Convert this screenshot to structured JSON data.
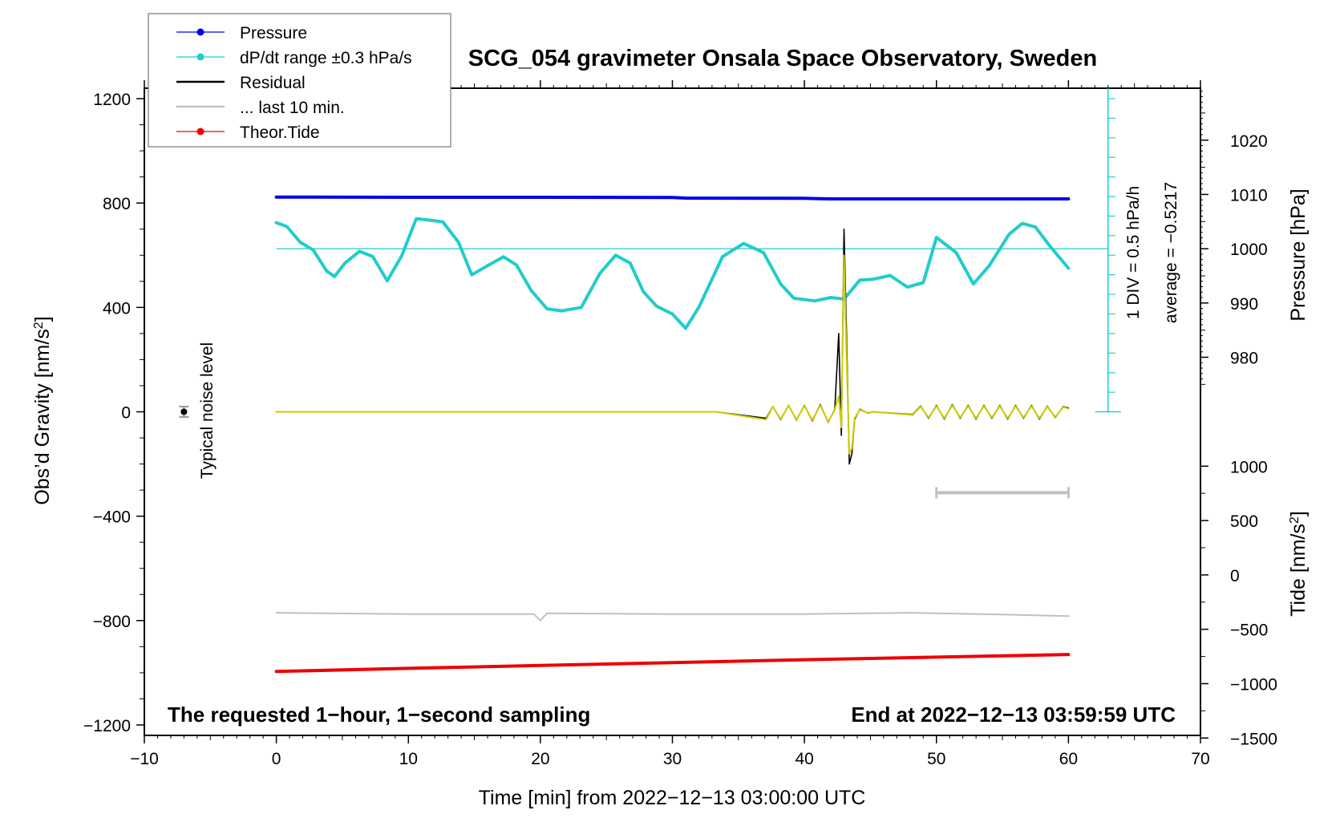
{
  "chart_data": {
    "type": "line",
    "title": "SCG_054 gravimeter Onsala Space Observatory, Sweden",
    "xlabel": "Time [min] from 2022−12−13 03:00:00 UTC",
    "ylabel_left": "Obs’d Gravity [nm/s",
    "ylabel_left_sup": "2",
    "ylabel_left_close": "]",
    "ylabel_right_pressure": "Pressure [hPa]",
    "ylabel_right_tide": "Tide [nm/s",
    "ylabel_right_tide_sup": "2",
    "ylabel_right_tide_close": "]",
    "xlim": [
      -10,
      70
    ],
    "ylim_left": [
      -1240,
      1240
    ],
    "x_ticks": [
      -10,
      0,
      10,
      20,
      30,
      40,
      50,
      60,
      70
    ],
    "x_tick_labels": [
      "−10",
      "0",
      "10",
      "20",
      "30",
      "40",
      "50",
      "60",
      "70"
    ],
    "y_left_ticks": [
      1200,
      800,
      400,
      0,
      -400,
      -800,
      -1200
    ],
    "y_left_tick_labels": [
      "1200",
      "800",
      "400",
      "0",
      "−400",
      "−800",
      "−1200"
    ],
    "pressure_axis": {
      "ticks": [
        1020,
        1010,
        1000,
        990,
        980
      ],
      "labels": [
        "1020",
        "1010",
        "1000",
        "990",
        "980"
      ],
      "g_at_1000": 625,
      "g_per_hpa": 20.8
    },
    "tide_axis": {
      "ticks": [
        1000,
        500,
        0,
        -500,
        -1000,
        -1500
      ],
      "labels": [
        "1000",
        "500",
        "0",
        "−500",
        "−1000",
        "−1500"
      ],
      "g_at_0": -625,
      "g_per_unit": 0.4167
    },
    "series": [
      {
        "name": "Pressure",
        "color": "#0000ee",
        "x": [
          0,
          10,
          20,
          30,
          31,
          40,
          42,
          50,
          60
        ],
        "y": [
          823,
          822,
          822,
          821,
          819,
          818,
          816,
          816,
          816
        ]
      },
      {
        "name": "dP/dt range ±0.3 hPa/s",
        "color": "#22cccc",
        "x": [
          0,
          0.8,
          1.8,
          2.8,
          3.8,
          4.4,
          5.2,
          6.3,
          7.3,
          8.4,
          9.5,
          10.6,
          11.5,
          12.6,
          13.8,
          14.8,
          16,
          17.2,
          18.2,
          19.3,
          20.5,
          21.6,
          23.1,
          24.5,
          25.7,
          26.8,
          27.8,
          28.8,
          30,
          31,
          32,
          33.8,
          35.4,
          36.9,
          38.2,
          39.2,
          40.8,
          42,
          43,
          44.2,
          45.2,
          46.5,
          47.8,
          49,
          50,
          51.5,
          52.8,
          54,
          55.5,
          56.5,
          57.5,
          58.6,
          60
        ],
        "y": [
          725,
          710,
          650,
          620,
          540,
          518,
          570,
          615,
          595,
          502,
          598,
          740,
          735,
          728,
          650,
          525,
          560,
          594,
          562,
          465,
          395,
          387,
          400,
          530,
          600,
          570,
          460,
          405,
          375,
          320,
          400,
          595,
          645,
          610,
          490,
          435,
          425,
          438,
          432,
          505,
          508,
          522,
          478,
          495,
          668,
          610,
          490,
          560,
          680,
          722,
          708,
          635,
          550
        ]
      },
      {
        "name": "Residual",
        "color": "#000000",
        "x": [
          0,
          33.3,
          37.1,
          37.6,
          38.2,
          38.8,
          39.4,
          40,
          40.6,
          41.2,
          41.8,
          42.3,
          42.6,
          42.8,
          43.0,
          43.2,
          43.4,
          43.6,
          43.8,
          44.2,
          44.8,
          45.2,
          48.2,
          48.8,
          49.4,
          50,
          50.6,
          51.2,
          51.8,
          52.4,
          53,
          53.6,
          54.2,
          54.8,
          55.4,
          56,
          56.6,
          57.2,
          57.8,
          58.4,
          59,
          59.6,
          60
        ],
        "y": [
          0,
          0,
          -25,
          20,
          -30,
          25,
          -32,
          25,
          -35,
          28,
          -40,
          10,
          300,
          -90,
          700,
          280,
          -200,
          -160,
          -30,
          10,
          -5,
          0,
          -10,
          22,
          -25,
          25,
          -28,
          28,
          -25,
          25,
          -28,
          25,
          -25,
          25,
          -28,
          25,
          -25,
          25,
          -28,
          22,
          -22,
          20,
          15
        ]
      },
      {
        "name": "... last 10 min.",
        "color": "#c0c0c0",
        "x": [
          0,
          10,
          19.5,
          20,
          20.5,
          30,
          40,
          48,
          50,
          55,
          60
        ],
        "y": [
          -770,
          -775,
          -775,
          -800,
          -772,
          -775,
          -775,
          -770,
          -772,
          -777,
          -783
        ]
      },
      {
        "name": "Theor.Tide",
        "color": "#ee0000",
        "x": [
          0,
          10,
          20,
          30,
          40,
          50,
          60
        ],
        "y": [
          -995,
          -983,
          -972,
          -961,
          -950,
          -940,
          -930
        ]
      },
      {
        "name": "Gravity (smoothed)",
        "color": "#cccc00",
        "x": [
          0,
          33.3,
          37.1,
          37.6,
          38.2,
          38.8,
          39.4,
          40,
          40.6,
          41.2,
          41.8,
          42.3,
          42.6,
          42.8,
          43.0,
          43.2,
          43.4,
          43.6,
          43.8,
          44.2,
          44.8,
          45.2,
          48.2,
          48.8,
          49.4,
          50,
          50.6,
          51.2,
          51.8,
          52.4,
          53,
          53.6,
          54.2,
          54.8,
          55.4,
          56,
          56.6,
          57.2,
          57.8,
          58.4,
          59,
          59.6,
          60
        ],
        "y": [
          0,
          0,
          -30,
          20,
          -28,
          24,
          -30,
          23,
          -32,
          25,
          -38,
          8,
          60,
          -60,
          600,
          200,
          -160,
          -140,
          -25,
          8,
          -4,
          0,
          -12,
          20,
          -22,
          22,
          -25,
          25,
          -22,
          22,
          -25,
          22,
          -22,
          22,
          -25,
          22,
          -22,
          22,
          -25,
          20,
          -20,
          18,
          12
        ]
      }
    ],
    "dpdt_reference_level": 625,
    "scale_bar": {
      "label": "1 DIV = 0.5 hPa/h",
      "average_label": "average = −0.5217",
      "x": 63,
      "y_bottom": 0,
      "y_top": 1240,
      "div": 75
    },
    "last_10min_bar": {
      "x_start": 50,
      "x_end": 60,
      "y": -310
    },
    "noise": {
      "label": "Typical noise level",
      "x": -7,
      "y": 0,
      "err": 20
    },
    "annotations": {
      "bottom_left": "The requested 1−hour, 1−second sampling",
      "bottom_right": "End at 2022−12−13 03:59:59 UTC"
    },
    "legend": {
      "placement": "top-left",
      "entries": [
        {
          "label": "Pressure",
          "color": "#0000ee",
          "marker": true
        },
        {
          "label": "dP/dt range ±0.3 hPa/s",
          "color": "#22cccc",
          "marker": true
        },
        {
          "label": "Residual",
          "color": "#000000",
          "marker": false
        },
        {
          "label": "... last 10 min.",
          "color": "#c0c0c0",
          "marker": false
        },
        {
          "label": "Theor.Tide",
          "color": "#ee0000",
          "marker": true
        }
      ]
    }
  }
}
